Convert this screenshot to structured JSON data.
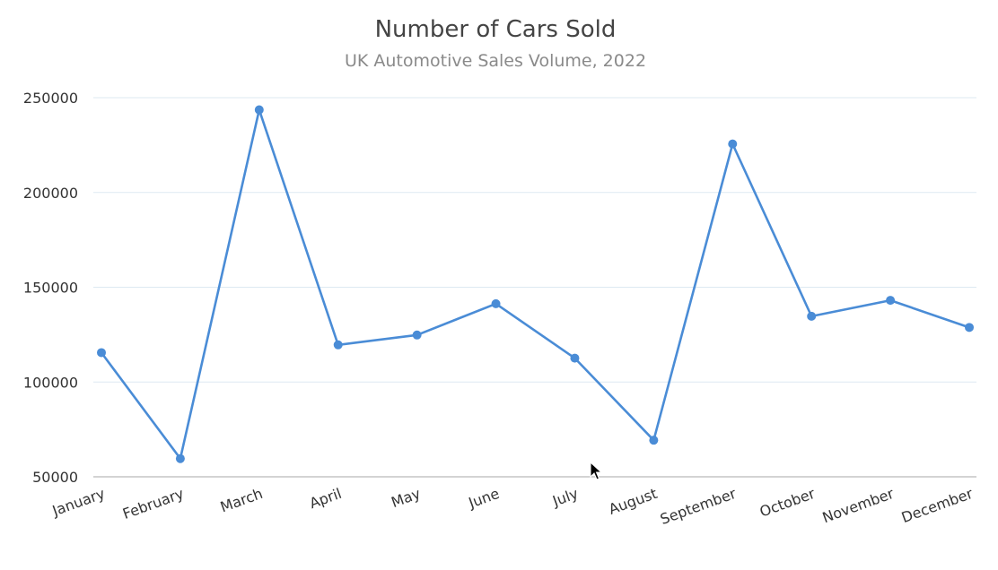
{
  "chart_data": {
    "type": "line",
    "title": "Number of Cars Sold",
    "subtitle": "UK Automotive Sales Volume, 2022",
    "xlabel": "",
    "ylabel": "",
    "categories": [
      "January",
      "February",
      "March",
      "April",
      "May",
      "June",
      "July",
      "August",
      "September",
      "October",
      "November",
      "December"
    ],
    "series": [
      {
        "values": [
          115500,
          59600,
          243600,
          119600,
          124800,
          141300,
          112600,
          69300,
          225600,
          134700,
          143100,
          128800
        ],
        "color": "#4a8cd6"
      }
    ],
    "ylim": [
      50000,
      250000
    ],
    "yticks": [
      50000,
      100000,
      150000,
      200000,
      250000
    ],
    "grid": true,
    "legend": "none"
  },
  "colors": {
    "series": "#4a8cd6",
    "grid": "#dde9f2",
    "axis": "#a7a7a7",
    "title": "#444444",
    "subtitle": "#8a8a8a"
  }
}
